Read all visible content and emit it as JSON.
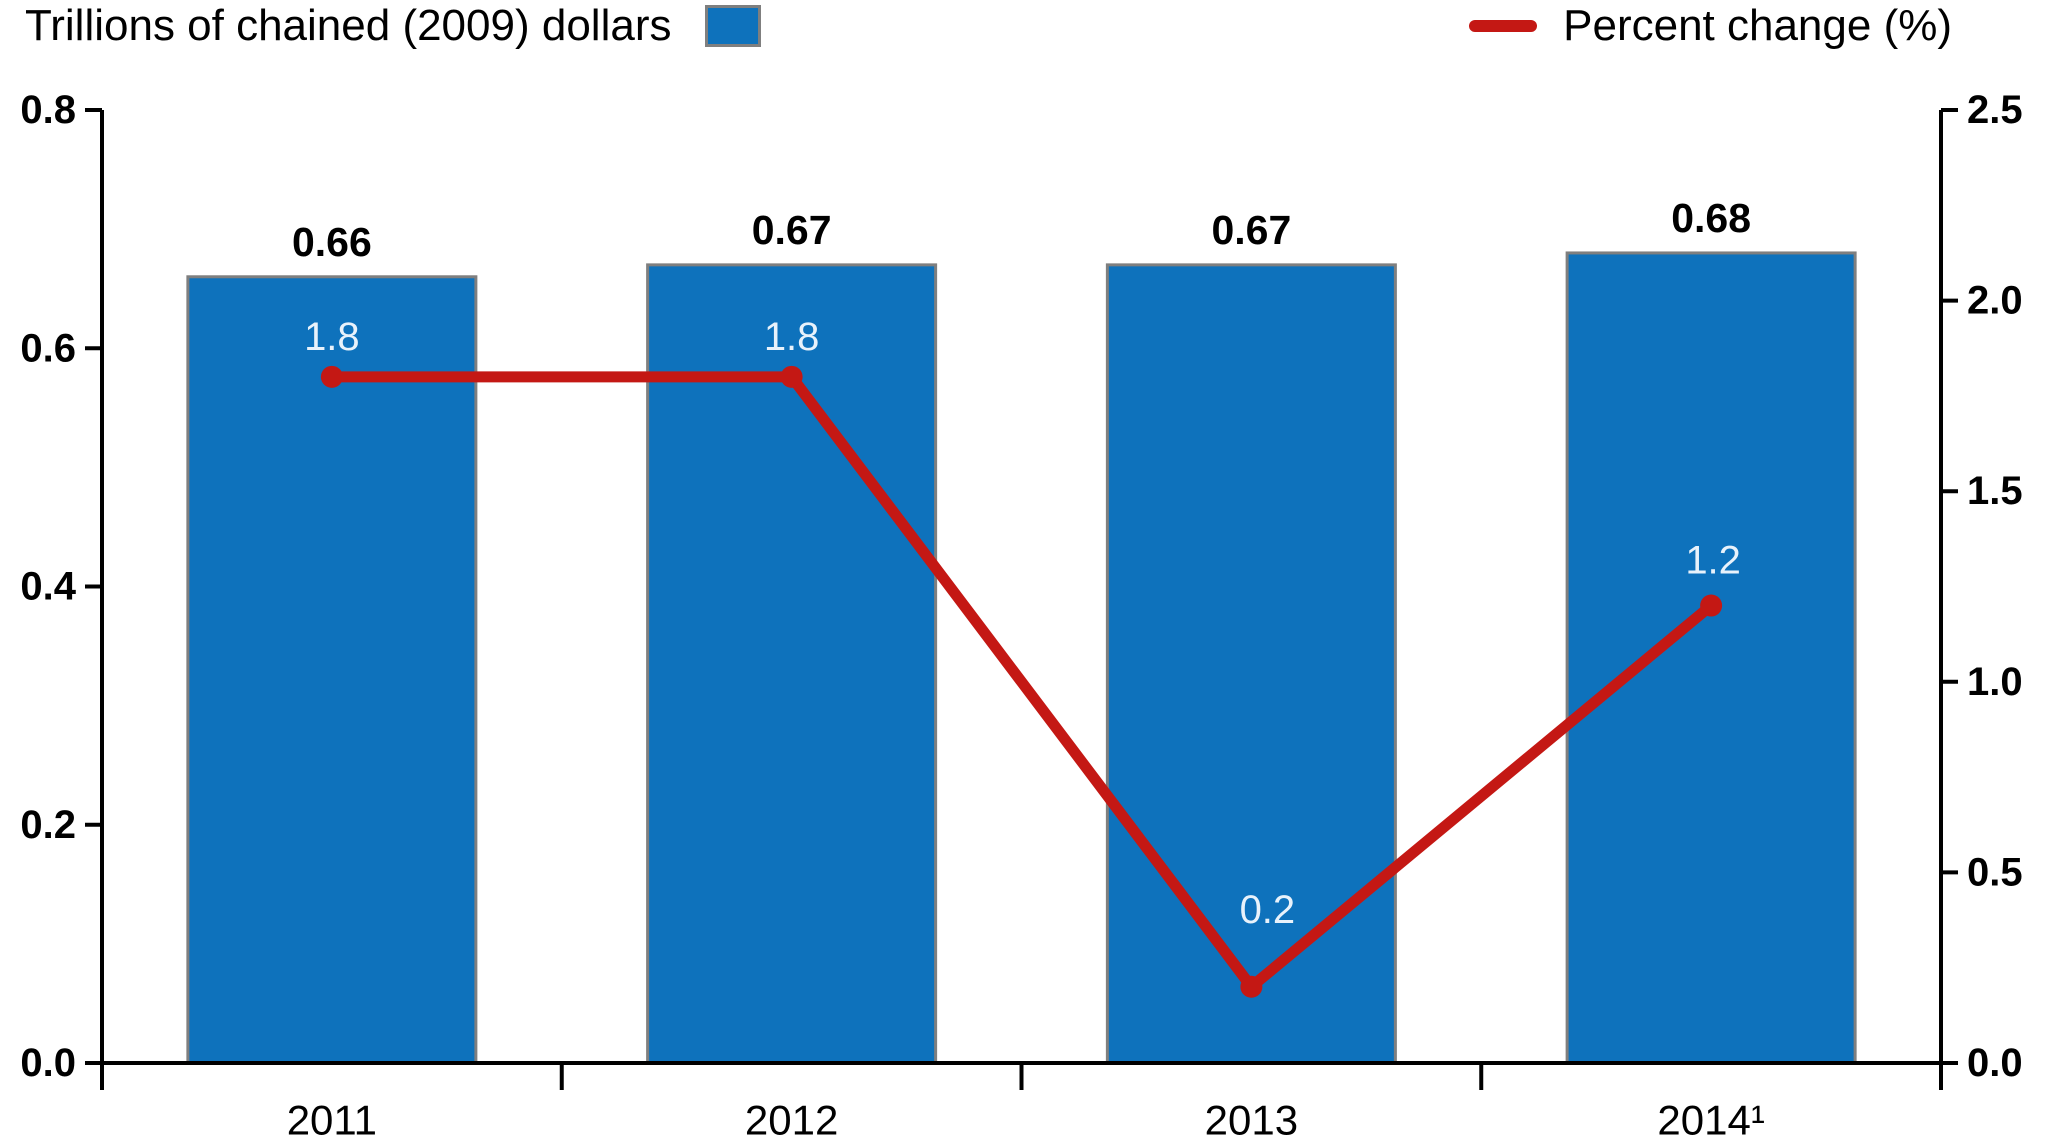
{
  "legend": {
    "bars_label": "Trillions of chained (2009) dollars",
    "line_label": "Percent change (%)"
  },
  "chart_data": {
    "type": "bar",
    "subtype": "combo-bar-line-dual-axis",
    "categories": [
      "2011",
      "2012",
      "2013",
      "2014¹"
    ],
    "series": [
      {
        "name": "Trillions of chained (2009) dollars",
        "type": "bar",
        "axis": "left",
        "values": [
          0.66,
          0.67,
          0.67,
          0.68
        ],
        "labels": [
          "0.66",
          "0.67",
          "0.67",
          "0.68"
        ]
      },
      {
        "name": "Percent change (%)",
        "type": "line",
        "axis": "right",
        "values": [
          1.8,
          1.8,
          0.2,
          1.2
        ],
        "labels": [
          "1.8",
          "1.8",
          "0.2",
          "1.2"
        ]
      }
    ],
    "left_axis": {
      "label": "Trillions of chained (2009) dollars",
      "ticks": [
        "0.8",
        "0.6",
        "0.4",
        "0.2",
        "0.0"
      ],
      "range": [
        0.0,
        0.8
      ]
    },
    "right_axis": {
      "label": "Percent change (%)",
      "ticks": [
        "2.5",
        "2.0",
        "1.5",
        "1.0",
        "0.5",
        "0.0"
      ],
      "range": [
        0.0,
        2.5
      ]
    },
    "grid": "off",
    "legend_position": "top",
    "colors": {
      "bar_fill": "#0E72BC",
      "bar_border": "#7F7F7F",
      "line": "#C41814",
      "line_label_text": "#E8F2FB",
      "axis": "#000000",
      "text": "#000000"
    }
  }
}
